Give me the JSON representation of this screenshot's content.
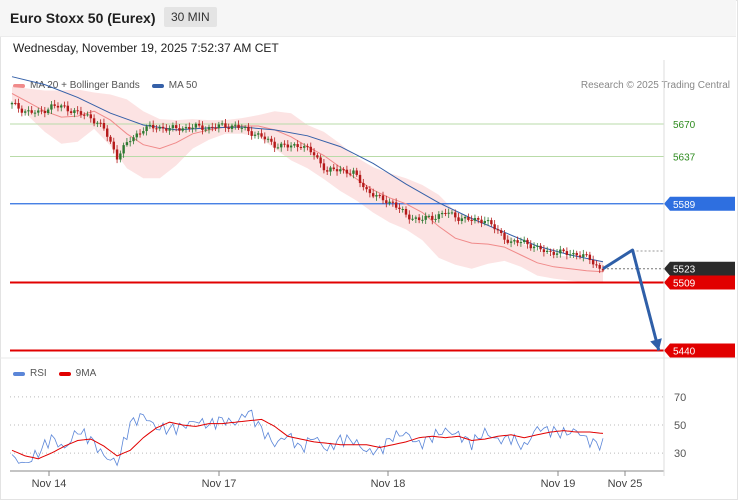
{
  "header": {
    "title": "Euro Stoxx 50 (Eurex)",
    "timeframe": "30 MIN",
    "datetime": "Wednesday, November 19, 2025 7:52:37 AM CET"
  },
  "legend": {
    "bollinger": "MA 20 + Bollinger Bands",
    "ma50": "MA 50",
    "rsi": "RSI",
    "ma9": "9MA"
  },
  "credit": "Research © 2025 Trading Central",
  "colors": {
    "bollinger": "#f08a8a",
    "ma50": "#3560a8",
    "support_red": "#e10000",
    "pivot_blue": "#2e6fe0",
    "resistance_green": "#2e8b1f",
    "rsi_line": "#5b86d8",
    "rsi_ma": "#e10000",
    "bear_candle": "#b51a1a",
    "bull_candle": "#2f7a33"
  },
  "chart_data": [
    {
      "type": "candlestick",
      "title": "Euro Stoxx 50 (Eurex)",
      "interval": "30 MIN",
      "x_ticks": [
        "Nov 14",
        "Nov 17",
        "Nov 18",
        "Nov 19",
        "Nov 25"
      ],
      "ylim": [
        5410,
        5735
      ],
      "series": [
        {
          "name": "MA 20 + Bollinger Bands",
          "x": [
            0,
            5,
            10,
            15,
            20,
            25,
            30,
            35,
            40,
            45,
            50,
            55,
            60,
            65,
            70,
            75,
            80,
            85,
            90,
            95,
            100,
            105,
            110,
            115,
            120,
            125,
            130,
            135,
            140,
            145,
            150,
            155,
            160,
            165,
            170,
            175,
            180
          ],
          "values": [
            5701,
            5692,
            5683,
            5677,
            5678,
            5683,
            5674,
            5660,
            5649,
            5645,
            5651,
            5660,
            5664,
            5667,
            5668,
            5668,
            5664,
            5657,
            5647,
            5638,
            5626,
            5614,
            5603,
            5595,
            5589,
            5580,
            5566,
            5554,
            5549,
            5548,
            5545,
            5537,
            5529,
            5525,
            5523,
            5521,
            5520
          ],
          "upper": [
            5708,
            5706,
            5704,
            5704,
            5705,
            5702,
            5700,
            5695,
            5683,
            5675,
            5674,
            5675,
            5674,
            5674,
            5676,
            5679,
            5683,
            5681,
            5669,
            5662,
            5650,
            5636,
            5626,
            5620,
            5615,
            5608,
            5598,
            5581,
            5575,
            5568,
            5559,
            5549,
            5542,
            5537,
            5535,
            5533,
            5531
          ],
          "lower": [
            5694,
            5678,
            5662,
            5650,
            5652,
            5665,
            5648,
            5625,
            5615,
            5615,
            5628,
            5645,
            5654,
            5660,
            5660,
            5657,
            5645,
            5633,
            5625,
            5614,
            5602,
            5592,
            5580,
            5570,
            5563,
            5552,
            5534,
            5527,
            5523,
            5528,
            5531,
            5525,
            5516,
            5513,
            5511,
            5509,
            5509
          ]
        },
        {
          "name": "MA 50",
          "x": [
            0,
            10,
            20,
            30,
            40,
            50,
            60,
            70,
            80,
            90,
            100,
            110,
            120,
            130,
            140,
            150,
            160,
            170,
            180
          ],
          "values": [
            5718,
            5710,
            5697,
            5681,
            5669,
            5664,
            5666,
            5667,
            5664,
            5658,
            5647,
            5630,
            5609,
            5590,
            5574,
            5560,
            5546,
            5537,
            5530
          ]
        },
        {
          "name": "Price",
          "x": [
            0,
            4,
            8,
            12,
            16,
            20,
            24,
            28,
            32,
            36,
            40,
            44,
            48,
            52,
            56,
            60,
            64,
            68,
            72,
            76,
            80,
            84,
            88,
            92,
            96,
            100,
            104,
            108,
            112,
            116,
            120,
            124,
            128,
            132,
            136,
            140,
            144,
            148,
            152,
            156,
            160,
            164,
            168,
            172,
            176,
            179
          ],
          "values": [
            5690,
            5683,
            5681,
            5688,
            5687,
            5681,
            5677,
            5665,
            5637,
            5654,
            5665,
            5667,
            5665,
            5666,
            5667,
            5666,
            5668,
            5668,
            5663,
            5657,
            5649,
            5647,
            5649,
            5639,
            5622,
            5624,
            5620,
            5603,
            5594,
            5590,
            5577,
            5573,
            5575,
            5580,
            5575,
            5572,
            5573,
            5561,
            5549,
            5551,
            5543,
            5540,
            5539,
            5538,
            5533,
            5523
          ]
        }
      ],
      "levels": [
        {
          "name": "5670",
          "value": 5670,
          "kind": "resistance"
        },
        {
          "name": "5637",
          "value": 5637,
          "kind": "resistance"
        },
        {
          "name": "5589",
          "value": 5589,
          "kind": "pivot"
        },
        {
          "name": "5523",
          "value": 5523,
          "kind": "last"
        },
        {
          "name": "5509",
          "value": 5509,
          "kind": "support"
        },
        {
          "name": "5440",
          "value": 5440,
          "kind": "support"
        }
      ],
      "forecast_arrow": [
        [
          180,
          5523
        ],
        [
          189,
          5542
        ],
        [
          197,
          5440
        ]
      ]
    },
    {
      "type": "line",
      "ylim": [
        18,
        82
      ],
      "y_ticks": [
        "70",
        "50",
        "30"
      ],
      "series": [
        {
          "name": "RSI",
          "x": [
            0,
            4,
            8,
            12,
            16,
            20,
            24,
            28,
            32,
            36,
            40,
            44,
            48,
            52,
            56,
            60,
            64,
            68,
            72,
            76,
            80,
            84,
            88,
            92,
            96,
            100,
            104,
            108,
            112,
            116,
            120,
            124,
            128,
            132,
            136,
            140,
            144,
            148,
            152,
            156,
            160,
            164,
            168,
            172,
            176,
            180
          ],
          "values": [
            27,
            22,
            30,
            41,
            33,
            46,
            40,
            28,
            23,
            51,
            57,
            48,
            47,
            49,
            53,
            50,
            54,
            51,
            60,
            47,
            36,
            43,
            33,
            42,
            32,
            40,
            39,
            31,
            32,
            42,
            44,
            36,
            42,
            46,
            43,
            37,
            45,
            39,
            41,
            34,
            48,
            46,
            44,
            46,
            38,
            36
          ]
        },
        {
          "name": "9MA",
          "x": [
            0,
            4,
            8,
            12,
            16,
            20,
            24,
            28,
            32,
            36,
            40,
            44,
            48,
            52,
            56,
            60,
            64,
            68,
            72,
            76,
            80,
            84,
            88,
            92,
            96,
            100,
            104,
            108,
            112,
            116,
            120,
            124,
            128,
            132,
            136,
            140,
            144,
            148,
            152,
            156,
            160,
            164,
            168,
            172,
            176,
            180
          ],
          "values": [
            32,
            28,
            26,
            30,
            35,
            39,
            40,
            35,
            28,
            32,
            41,
            48,
            52,
            50,
            49,
            51,
            51,
            52,
            53,
            54,
            49,
            42,
            40,
            38,
            37,
            36,
            36,
            36,
            34,
            36,
            38,
            41,
            42,
            41,
            42,
            39,
            40,
            42,
            43,
            41,
            43,
            45,
            46,
            45,
            45,
            44
          ]
        }
      ]
    }
  ]
}
